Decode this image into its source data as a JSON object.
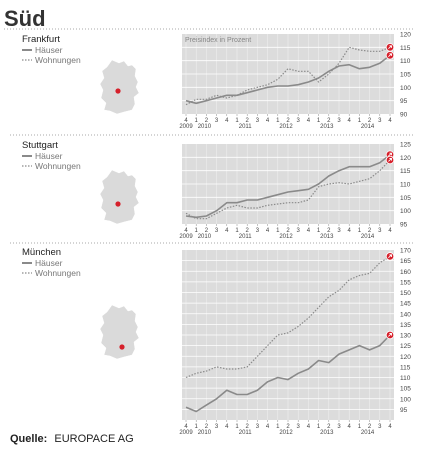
{
  "header": {
    "title": "Süd"
  },
  "source": {
    "label": "Quelle:",
    "value": "EUROPACE AG"
  },
  "x_ticks": {
    "quarters": [
      "4",
      "1",
      "2",
      "3",
      "4",
      "1",
      "2",
      "3",
      "4",
      "1",
      "2",
      "3",
      "4",
      "1",
      "2",
      "3",
      "4",
      "1",
      "2",
      "3",
      "4"
    ],
    "years": [
      "2009",
      "2010",
      "2011",
      "2012",
      "2013",
      "2014"
    ]
  },
  "chart_data": [
    {
      "type": "line",
      "city": "Frankfurt",
      "subtitle": "Preisindex in Prozent",
      "x": [
        "2009 Q4",
        "2010 Q1",
        "2010 Q2",
        "2010 Q3",
        "2010 Q4",
        "2011 Q1",
        "2011 Q2",
        "2011 Q3",
        "2011 Q4",
        "2012 Q1",
        "2012 Q2",
        "2012 Q3",
        "2012 Q4",
        "2013 Q1",
        "2013 Q2",
        "2013 Q3",
        "2013 Q4",
        "2014 Q1",
        "2014 Q2",
        "2014 Q3",
        "2014 Q4"
      ],
      "ylim": [
        90,
        120
      ],
      "yticks": [
        90,
        95,
        100,
        105,
        110,
        115,
        120
      ],
      "series": [
        {
          "name": "Häuser",
          "style": "solid",
          "color": "#8a8a8a",
          "values": [
            95,
            94,
            95,
            96,
            97,
            97,
            98,
            99,
            100,
            100.5,
            100.5,
            101,
            102,
            103.5,
            106,
            108,
            108.5,
            107,
            107.5,
            109,
            112
          ]
        },
        {
          "name": "Wohnungen",
          "style": "dotted",
          "color": "#8a8a8a",
          "values": [
            93.5,
            95.5,
            95.5,
            97,
            96,
            97,
            99,
            100,
            101,
            103,
            107,
            106,
            106,
            102,
            105,
            109,
            115,
            114,
            113.5,
            113.5,
            115
          ]
        }
      ]
    },
    {
      "type": "line",
      "city": "Stuttgart",
      "x": [
        "2009 Q4",
        "2010 Q1",
        "2010 Q2",
        "2010 Q3",
        "2010 Q4",
        "2011 Q1",
        "2011 Q2",
        "2011 Q3",
        "2011 Q4",
        "2012 Q1",
        "2012 Q2",
        "2012 Q3",
        "2012 Q4",
        "2013 Q1",
        "2013 Q2",
        "2013 Q3",
        "2013 Q4",
        "2014 Q1",
        "2014 Q2",
        "2014 Q3",
        "2014 Q4"
      ],
      "ylim": [
        95,
        125
      ],
      "yticks": [
        95,
        100,
        105,
        110,
        115,
        120,
        125
      ],
      "series": [
        {
          "name": "Häuser",
          "style": "solid",
          "color": "#8a8a8a",
          "values": [
            98,
            97.5,
            98,
            100,
            103,
            103,
            104,
            104,
            105,
            106,
            107,
            107.5,
            108,
            110,
            113,
            115,
            116.5,
            116.5,
            116.5,
            118,
            121
          ]
        },
        {
          "name": "Wohnungen",
          "style": "dotted",
          "color": "#8a8a8a",
          "values": [
            99,
            97,
            97,
            99,
            101,
            102,
            101,
            101,
            102,
            102.5,
            103,
            103,
            104,
            109,
            110,
            110.5,
            110,
            111,
            112,
            115,
            119
          ]
        }
      ]
    },
    {
      "type": "line",
      "city": "München",
      "x": [
        "2009 Q4",
        "2010 Q1",
        "2010 Q2",
        "2010 Q3",
        "2010 Q4",
        "2011 Q1",
        "2011 Q2",
        "2011 Q3",
        "2011 Q4",
        "2012 Q1",
        "2012 Q2",
        "2012 Q3",
        "2012 Q4",
        "2013 Q1",
        "2013 Q2",
        "2013 Q3",
        "2013 Q4",
        "2014 Q1",
        "2014 Q2",
        "2014 Q3",
        "2014 Q4"
      ],
      "ylim": [
        90,
        170
      ],
      "yticks": [
        95,
        100,
        105,
        110,
        115,
        120,
        125,
        130,
        135,
        140,
        145,
        150,
        155,
        160,
        165,
        170
      ],
      "series": [
        {
          "name": "Häuser",
          "style": "solid",
          "color": "#8a8a8a",
          "values": [
            96,
            94,
            97,
            100,
            104,
            102,
            102,
            104,
            108,
            110,
            109,
            112,
            114,
            118,
            117,
            121,
            123,
            125,
            123,
            125,
            130
          ]
        },
        {
          "name": "Wohnungen",
          "style": "dotted",
          "color": "#8a8a8a",
          "values": [
            110,
            112,
            113,
            115,
            114,
            114,
            115,
            120,
            125,
            130,
            131,
            134,
            138,
            143,
            148,
            151,
            156,
            158,
            159,
            164,
            167
          ]
        }
      ]
    }
  ],
  "colors": {
    "plot_background": "#dcdcdc",
    "line": "#8a8a8a",
    "end_marker": "#d6202b",
    "map_fill": "#dadada",
    "map_dot": "#d6202b"
  }
}
